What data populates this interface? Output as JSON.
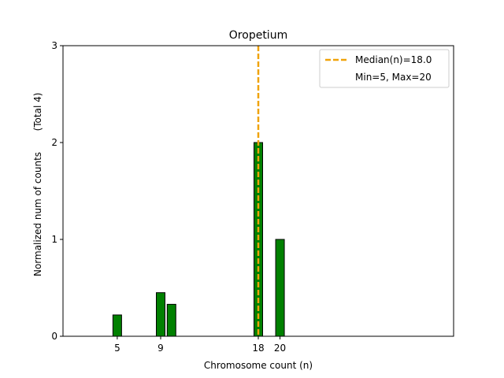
{
  "chart_data": {
    "type": "bar",
    "title": "Oropetium",
    "xlabel": "Chromosome count (n)",
    "ylabel": "Normalized num of counts",
    "ylabel_note": "(Total 4)",
    "xlim": [
      0,
      36
    ],
    "ylim": [
      0,
      3
    ],
    "xticks": [
      5,
      9,
      18,
      20
    ],
    "yticks": [
      0,
      1,
      2,
      3
    ],
    "bar_color": "#008000",
    "bar_edge_color": "#000000",
    "bars": [
      {
        "x": 5,
        "value": 0.22
      },
      {
        "x": 9,
        "value": 0.45
      },
      {
        "x": 10,
        "value": 0.33
      },
      {
        "x": 18,
        "value": 2.0
      },
      {
        "x": 20,
        "value": 1.0
      }
    ],
    "median": {
      "x": 18.0,
      "color": "#f0a30a"
    },
    "legend": {
      "placement": "top-right",
      "entries": [
        "Median(n)=18.0",
        "Min=5, Max=20"
      ]
    },
    "grid": false
  }
}
